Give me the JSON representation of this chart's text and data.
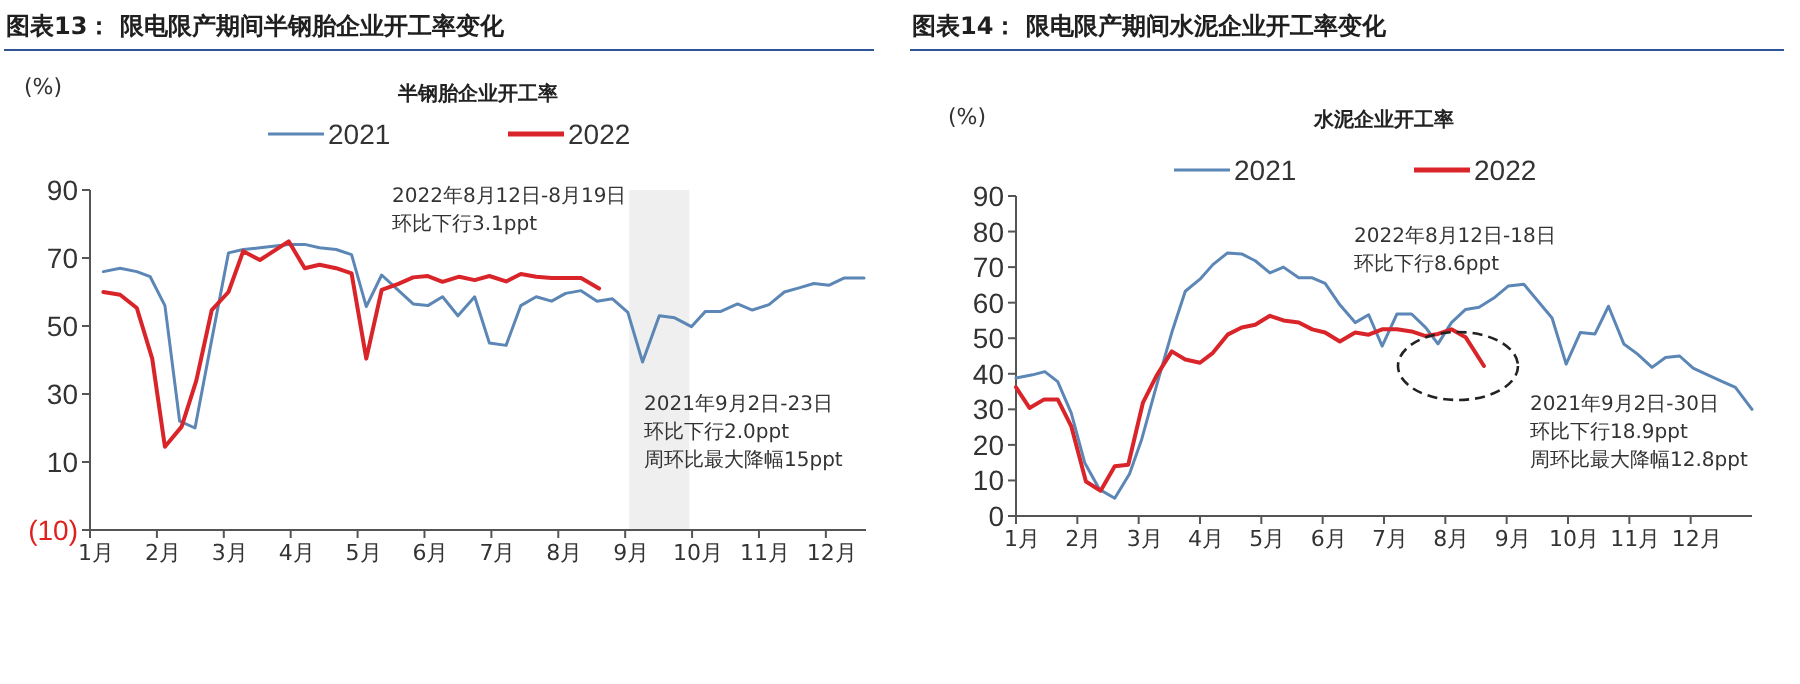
{
  "chart_data": [
    {
      "type": "line",
      "title": "图表13： 限电限产期间半钢胎企业开工率变化",
      "subtitle": "半钢胎企业开工率",
      "ylabel": "(%)",
      "xlim": [
        1,
        12.6
      ],
      "xticks": [
        {
          "value": 1,
          "label": "1月"
        },
        {
          "value": 2,
          "label": "2月"
        },
        {
          "value": 3,
          "label": "3月"
        },
        {
          "value": 4,
          "label": "4月"
        },
        {
          "value": 5,
          "label": "5月"
        },
        {
          "value": 6,
          "label": "6月"
        },
        {
          "value": 7,
          "label": "7月"
        },
        {
          "value": 8,
          "label": "8月"
        },
        {
          "value": 9,
          "label": "9月"
        },
        {
          "value": 10,
          "label": "10月"
        },
        {
          "value": 11,
          "label": "11月"
        },
        {
          "value": 12,
          "label": "12月"
        }
      ],
      "ylim": [
        -10,
        90
      ],
      "yticks": [
        {
          "value": -10,
          "label": "(10)"
        },
        10,
        30,
        50,
        70,
        90
      ],
      "grid": false,
      "legend": "top",
      "marker": "none",
      "line_style": "solid",
      "bands": [
        {
          "axis": "x",
          "from": 9.06,
          "to": 9.96,
          "color": "#efefef"
        }
      ],
      "annotations": [
        "2022年8月12日-8月19日",
        "环比下行3.1ppt",
        "2021年9月2日-23日",
        "环比下行2.0ppt",
        "周环比最大降幅15ppt"
      ],
      "series": [
        {
          "name": "2021",
          "color": "#5b86b5",
          "x": [
            1.2,
            1.45,
            1.7,
            1.9,
            2.12,
            2.34,
            2.57,
            2.82,
            3.07,
            3.29,
            3.54,
            3.97,
            4.21,
            4.43,
            4.68,
            4.91,
            5.13,
            5.36,
            5.61,
            5.83,
            6.05,
            6.27,
            6.5,
            6.75,
            6.97,
            7.22,
            7.44,
            7.67,
            7.9,
            8.11,
            8.34,
            8.58,
            8.81,
            9.04,
            9.26,
            9.51,
            9.74,
            9.99,
            10.2,
            10.43,
            10.68,
            10.9,
            11.15,
            11.38,
            11.6,
            11.82,
            12.05,
            12.27,
            12.57
          ],
          "values": [
            66,
            67,
            66,
            64.5,
            56,
            22,
            20,
            46,
            71.5,
            72.5,
            73,
            74,
            74,
            73,
            72.5,
            71,
            55.7,
            65,
            60.5,
            56.5,
            56,
            58.6,
            53,
            58.6,
            45,
            44.3,
            56,
            58.6,
            57.3,
            59.6,
            60.4,
            57.3,
            58,
            54,
            39.4,
            53,
            52.4,
            49.8,
            54.3,
            54.3,
            56.5,
            54.7,
            56.3,
            60,
            61.2,
            62.5,
            62,
            64.1,
            64.1
          ]
        },
        {
          "name": "2022",
          "color": "#d9252a",
          "x": [
            1.2,
            1.45,
            1.7,
            1.93,
            2.12,
            2.37,
            2.59,
            2.82,
            3.07,
            3.29,
            3.54,
            3.97,
            4.21,
            4.43,
            4.68,
            4.91,
            5.13,
            5.36,
            5.61,
            5.83,
            6.05,
            6.27,
            6.52,
            6.75,
            6.97,
            7.22,
            7.44,
            7.67,
            7.9,
            8.11,
            8.34,
            8.61
          ],
          "values": [
            60,
            59.2,
            55.3,
            40.4,
            14.5,
            20.4,
            34,
            54.7,
            60,
            72,
            69.4,
            74.9,
            67,
            68,
            67,
            65.5,
            40.4,
            60.6,
            62.4,
            64.3,
            64.7,
            63,
            64.5,
            63.5,
            64.7,
            63.1,
            65.3,
            64.5,
            64.1,
            64.1,
            64.1,
            61
          ]
        }
      ]
    },
    {
      "type": "line",
      "title": "图表14： 限电限产期间水泥企业开工率变化",
      "subtitle": "水泥企业开工率",
      "ylabel": "(%)",
      "xlim": [
        1,
        13
      ],
      "xticks": [
        {
          "value": 1,
          "label": "1月"
        },
        {
          "value": 2,
          "label": "2月"
        },
        {
          "value": 3,
          "label": "3月"
        },
        {
          "value": 4,
          "label": "4月"
        },
        {
          "value": 5,
          "label": "5月"
        },
        {
          "value": 6,
          "label": "6月"
        },
        {
          "value": 7,
          "label": "7月"
        },
        {
          "value": 8,
          "label": "8月"
        },
        {
          "value": 9,
          "label": "9月"
        },
        {
          "value": 10,
          "label": "10月"
        },
        {
          "value": 11,
          "label": "11月"
        },
        {
          "value": 12,
          "label": "12月"
        }
      ],
      "ylim": [
        0,
        90
      ],
      "yticks": [
        0,
        10,
        20,
        30,
        40,
        50,
        60,
        70,
        80,
        90
      ],
      "grid": false,
      "legend": "top",
      "marker": "none",
      "line_style": "solid",
      "annotations": [
        "2022年8月12日-18日",
        "环比下行8.6ppt",
        "2021年9月2日-30日",
        "环比下行18.9ppt",
        "周环比最大降幅12.8ppt"
      ],
      "series": [
        {
          "name": "2021",
          "color": "#5b86b5",
          "x": [
            1.0,
            1.27,
            1.47,
            1.68,
            1.9,
            2.12,
            2.36,
            2.61,
            2.85,
            3.05,
            3.29,
            3.54,
            3.76,
            4.0,
            4.21,
            4.45,
            4.68,
            4.9,
            5.14,
            5.36,
            5.61,
            5.83,
            6.04,
            6.28,
            6.53,
            6.75,
            6.97,
            7.21,
            7.45,
            7.68,
            7.88,
            8.1,
            8.33,
            8.55,
            8.79,
            9.03,
            9.28,
            9.74,
            9.97,
            10.2,
            10.44,
            10.66,
            10.91,
            11.13,
            11.37,
            11.59,
            11.82,
            12.04,
            12.25,
            12.49,
            12.73,
            13.0
          ],
          "values": [
            38.8,
            39.7,
            40.6,
            37.8,
            29,
            15,
            7.5,
            5,
            11.8,
            21.6,
            36.6,
            51.6,
            63.2,
            66.6,
            70.7,
            74,
            73.7,
            71.8,
            68.4,
            70,
            67,
            67,
            65.4,
            59.4,
            54.4,
            56.6,
            47.8,
            56.8,
            56.8,
            53,
            48.4,
            54.4,
            58.1,
            58.7,
            61.3,
            64.7,
            65.2,
            55.7,
            42.7,
            51.6,
            51.2,
            59,
            48.4,
            45.6,
            41.8,
            44.6,
            45,
            41.6,
            39.9,
            38,
            36.2,
            30
          ]
        },
        {
          "name": "2022",
          "color": "#d9252a",
          "x": [
            1.0,
            1.22,
            1.46,
            1.68,
            1.9,
            2.14,
            2.38,
            2.61,
            2.83,
            3.07,
            3.29,
            3.54,
            3.76,
            4.0,
            4.21,
            4.45,
            4.68,
            4.9,
            5.14,
            5.36,
            5.61,
            5.83,
            6.04,
            6.28,
            6.53,
            6.75,
            6.97,
            7.21,
            7.45,
            7.68,
            7.88,
            8.1,
            8.33,
            8.63
          ],
          "values": [
            36.2,
            30.4,
            32.8,
            32.8,
            25.3,
            9.7,
            7.1,
            14,
            14.4,
            31.9,
            39.4,
            46.3,
            44,
            43.1,
            45.9,
            51,
            53,
            53.8,
            56.3,
            55,
            54.4,
            52.5,
            51.6,
            49.1,
            51.6,
            51,
            52.5,
            52.5,
            51.9,
            50.6,
            51.2,
            52.5,
            50.3,
            42.2
          ]
        }
      ]
    }
  ]
}
